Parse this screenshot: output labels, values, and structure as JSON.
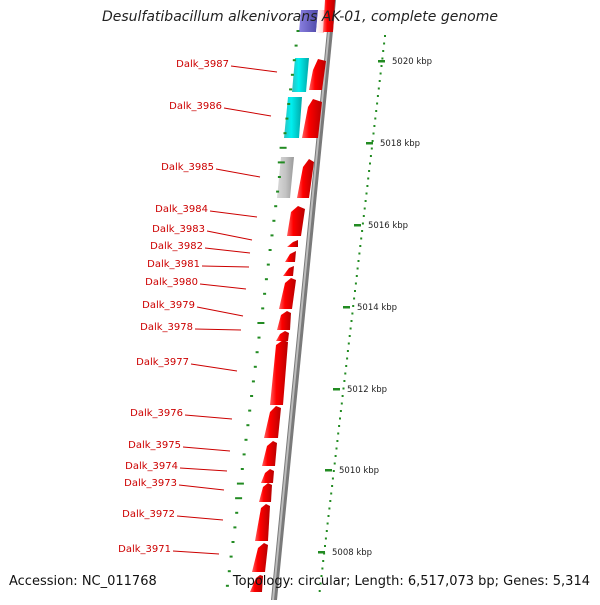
{
  "title": "Desulfatibacillum alkenivorans AK-01, complete genome",
  "footer": {
    "accession": "Accession: NC_011768",
    "topology": "Topology: circular; Length: 6,517,073 bp; Genes: 5,314"
  },
  "scale_ticks": [
    {
      "label": "5020 kbp",
      "value": 5020
    },
    {
      "label": "5018 kbp",
      "value": 5018
    },
    {
      "label": "5016 kbp",
      "value": 5016
    },
    {
      "label": "5014 kbp",
      "value": 5014
    },
    {
      "label": "5012 kbp",
      "value": 5012
    },
    {
      "label": "5010 kbp",
      "value": 5010
    },
    {
      "label": "5008 kbp",
      "value": 5008
    }
  ],
  "gene_labels": [
    {
      "id": "Dalk_3987",
      "type": "cds"
    },
    {
      "id": "Dalk_3986",
      "type": "cds"
    },
    {
      "id": "Dalk_3985",
      "type": "cds"
    },
    {
      "id": "Dalk_3984",
      "type": "cds"
    },
    {
      "id": "Dalk_3983",
      "type": "cds"
    },
    {
      "id": "Dalk_3982",
      "type": "cds"
    },
    {
      "id": "Dalk_3981",
      "type": "cds"
    },
    {
      "id": "Dalk_3980",
      "type": "cds"
    },
    {
      "id": "Dalk_3979",
      "type": "cds"
    },
    {
      "id": "Dalk_3978",
      "type": "cds"
    },
    {
      "id": "Dalk_3977",
      "type": "cds"
    },
    {
      "id": "Dalk_3976",
      "type": "cds"
    },
    {
      "id": "Dalk_3975",
      "type": "cds"
    },
    {
      "id": "Dalk_3974",
      "type": "cds"
    },
    {
      "id": "Dalk_3973",
      "type": "cds"
    },
    {
      "id": "Dalk_3972",
      "type": "cds"
    },
    {
      "id": "Dalk_3971",
      "type": "cds"
    }
  ],
  "colors": {
    "label": "#cc0000",
    "forward_gene": "#ee0000",
    "cyan_gene": "#00d8d8",
    "gray_gene": "#b8b8b8",
    "purple_gene": "#6a5acd",
    "backbone": "#777777",
    "gc_tick": "#228b22"
  }
}
